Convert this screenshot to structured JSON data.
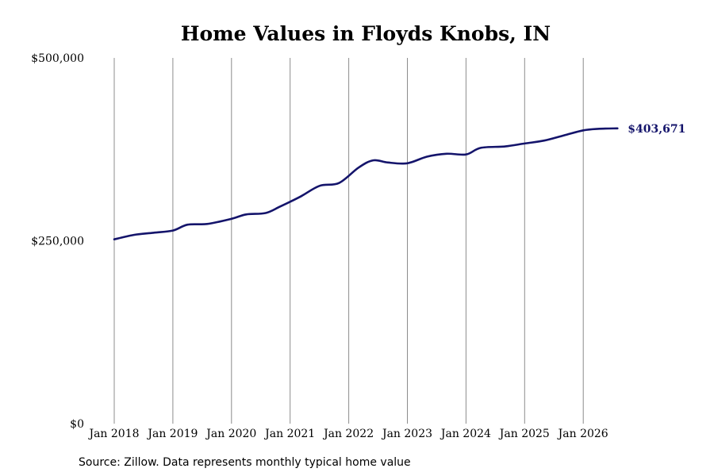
{
  "chart_data": {
    "type": "line",
    "title": "Home Values in Floyds Knobs, IN",
    "xlabel": "",
    "ylabel": "",
    "x_tick_labels": [
      "Jan 2018",
      "Jan 2019",
      "Jan 2020",
      "Jan 2021",
      "Jan 2022",
      "Jan 2023",
      "Jan 2024",
      "Jan 2025",
      "Jan 2026"
    ],
    "y_tick_labels": [
      "$0",
      "$250,000",
      "$500,000"
    ],
    "ylim": [
      0,
      500000
    ],
    "xlim": [
      "2018-01",
      "2026-08"
    ],
    "grid": "vertical lines at x ticks",
    "series": [
      {
        "color": "#14146b",
        "points": [
          {
            "x": "2018-01",
            "y": 252000
          },
          {
            "x": "2018-05",
            "y": 258000
          },
          {
            "x": "2018-09",
            "y": 261000
          },
          {
            "x": "2019-01",
            "y": 264000
          },
          {
            "x": "2019-04",
            "y": 272000
          },
          {
            "x": "2019-08",
            "y": 273000
          },
          {
            "x": "2020-01",
            "y": 280000
          },
          {
            "x": "2020-04",
            "y": 286000
          },
          {
            "x": "2020-08",
            "y": 288000
          },
          {
            "x": "2020-11",
            "y": 297000
          },
          {
            "x": "2021-03",
            "y": 310000
          },
          {
            "x": "2021-07",
            "y": 325000
          },
          {
            "x": "2021-11",
            "y": 329000
          },
          {
            "x": "2022-03",
            "y": 350000
          },
          {
            "x": "2022-06",
            "y": 360000
          },
          {
            "x": "2022-09",
            "y": 357000
          },
          {
            "x": "2023-01",
            "y": 356000
          },
          {
            "x": "2023-05",
            "y": 365000
          },
          {
            "x": "2023-09",
            "y": 369000
          },
          {
            "x": "2024-01",
            "y": 368000
          },
          {
            "x": "2024-04",
            "y": 377000
          },
          {
            "x": "2024-09",
            "y": 379000
          },
          {
            "x": "2025-01",
            "y": 383000
          },
          {
            "x": "2025-05",
            "y": 387000
          },
          {
            "x": "2025-09",
            "y": 394000
          },
          {
            "x": "2026-01",
            "y": 401000
          },
          {
            "x": "2026-04",
            "y": 403000
          },
          {
            "x": "2026-08",
            "y": 403671
          }
        ]
      }
    ],
    "end_label": "$403,671"
  },
  "source_note": "Source: Zillow. Data represents monthly typical home value"
}
